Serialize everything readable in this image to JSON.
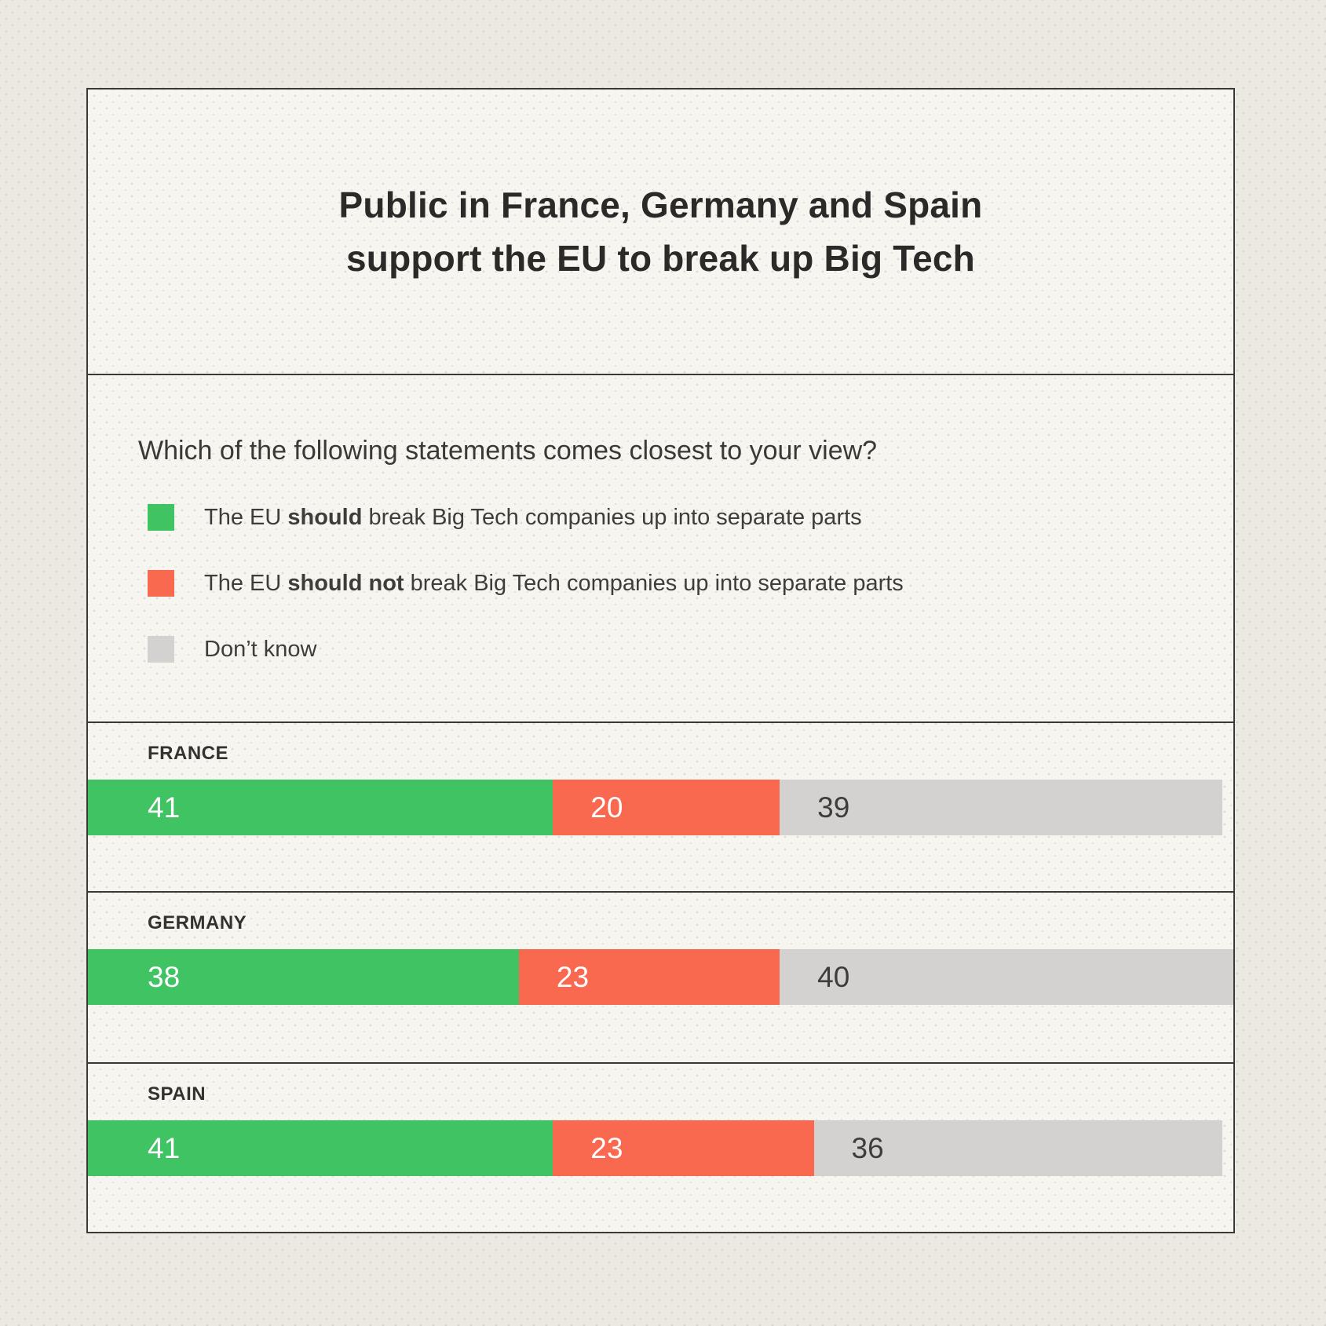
{
  "panel": {
    "title": {
      "line1": "Public in France, Germany and Spain",
      "line2": "support the EU to break up Big Tech"
    },
    "question": "Which of the following statements comes closest to your view?",
    "legend": [
      {
        "prefix": "The EU ",
        "bold": "should",
        "suffix": " break Big Tech companies up into separate parts"
      },
      {
        "prefix": "The EU ",
        "bold": "should not",
        "suffix": " break Big Tech companies up into separate parts"
      },
      {
        "prefix": "",
        "bold": "",
        "suffix": "Don’t know"
      }
    ]
  },
  "colors": {
    "panel_background": "#F7F5F0",
    "page_background": "#ECE9E3",
    "border": "#3A3936",
    "title_text": "#2B2A28",
    "body_text": "#3E3D3A"
  },
  "chart_data": {
    "type": "bar",
    "variant": "stacked-horizontal",
    "title": "Public in France, Germany and Spain support the EU to break up Big Tech",
    "subtitle": "Which of the following statements comes closest to your view?",
    "categories": [
      "FRANCE",
      "GERMANY",
      "SPAIN"
    ],
    "series": [
      {
        "name": "The EU should break Big Tech companies up into separate parts",
        "color": "#3FC363",
        "label_color": "#FFFFFF",
        "values": [
          41,
          38,
          41
        ]
      },
      {
        "name": "The EU should not break Big Tech companies up into separate parts",
        "color": "#F9694F",
        "label_color": "#FFFFFF",
        "values": [
          20,
          23,
          23
        ]
      },
      {
        "name": "Don’t know",
        "color": "#D3D2D0",
        "label_color": "#3E3D3A",
        "values": [
          39,
          40,
          36
        ]
      }
    ],
    "value_unit": "percent",
    "scale_max_units": 101,
    "data_labels": true,
    "legend_position": "top",
    "grid": false,
    "axes_shown": false
  }
}
